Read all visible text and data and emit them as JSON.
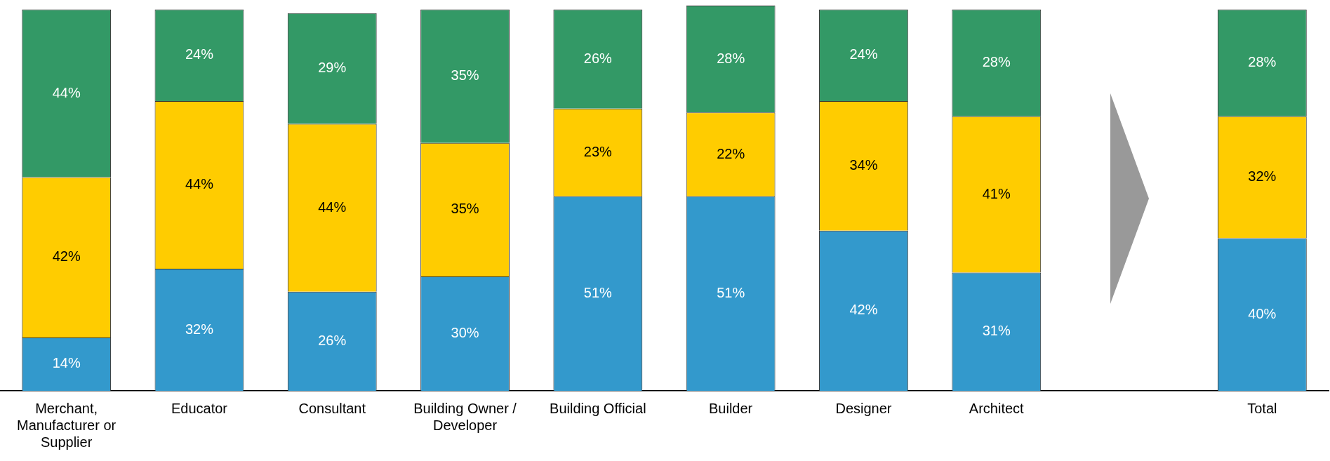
{
  "chart_data": {
    "type": "bar",
    "stacked": true,
    "grid": false,
    "legend": false,
    "tick_labels": "x",
    "categories": [
      "Merchant, Manufacturer or Supplier",
      "Educator",
      "Consultant",
      "Building Owner / Developer",
      "Building Official",
      "Builder",
      "Designer",
      "Architect",
      null,
      "Total"
    ],
    "series": [
      {
        "color": "#3399cc",
        "values": [
          14,
          32,
          26,
          30,
          51,
          51,
          42,
          31,
          null,
          40
        ],
        "value_labels": [
          "14%",
          "32%",
          "26%",
          "30%",
          "51%",
          "51%",
          "42%",
          "31%",
          null,
          "40%"
        ]
      },
      {
        "color": "#ffcc00",
        "values": [
          42,
          44,
          44,
          35,
          23,
          22,
          34,
          41,
          null,
          32
        ],
        "value_labels": [
          "42%",
          "44%",
          "44%",
          "35%",
          "23%",
          "22%",
          "34%",
          "41%",
          null,
          "32%"
        ]
      },
      {
        "color": "#339966",
        "values": [
          44,
          24,
          29,
          35,
          26,
          28,
          24,
          28,
          null,
          28
        ],
        "value_labels": [
          "44%",
          "24%",
          "29%",
          "35%",
          "26%",
          "28%",
          "24%",
          "28%",
          null,
          "28%"
        ]
      }
    ]
  }
}
